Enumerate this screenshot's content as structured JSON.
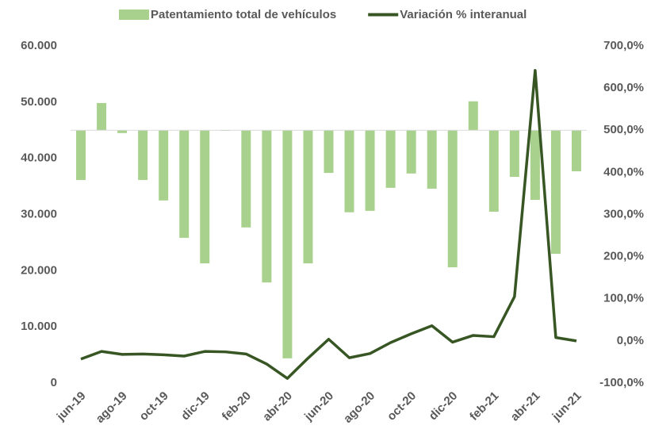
{
  "chart_data": {
    "type": "bar_line",
    "categories": [
      "jun-19",
      null,
      "ago-19",
      null,
      "oct-19",
      null,
      "dic-19",
      null,
      "feb-20",
      null,
      "abr-20",
      null,
      "jun-20",
      null,
      "ago-20",
      null,
      "oct-20",
      null,
      "dic-20",
      null,
      "feb-21",
      null,
      "abr-21",
      null,
      "jun-21"
    ],
    "series": [
      {
        "name": "Patentamiento total de vehículos",
        "color": "#a9d18e",
        "kind": "bar",
        "values": [
          36150,
          49850,
          44500,
          36150,
          32500,
          25850,
          21300,
          44900,
          27700,
          17900,
          4400,
          21300,
          37400,
          30400,
          30650,
          34750,
          37300,
          34600,
          20600,
          50150,
          30500,
          36700,
          32600,
          23000,
          37700
        ]
      },
      {
        "name": "Variación % interanual",
        "color": "#375623",
        "kind": "line",
        "axis": "y2",
        "values": [
          -43,
          -25,
          -32,
          -31,
          -33,
          -36,
          -25,
          -26,
          -31,
          -55,
          -89,
          -41,
          4,
          -40,
          -30,
          -4,
          17,
          36,
          -3,
          13,
          10,
          105,
          642,
          8,
          0
        ]
      }
    ],
    "bar_base": 45000,
    "ylim": [
      0,
      60000
    ],
    "yticks": [
      0,
      {
        "value": 10000,
        "label": "10.000"
      },
      {
        "value": 20000,
        "label": "20.000"
      },
      {
        "value": 30000,
        "label": "30.000"
      },
      {
        "value": 40000,
        "label": "40.000"
      },
      {
        "value": 50000,
        "label": "50.000"
      },
      {
        "value": 60000,
        "label": "60.000"
      }
    ],
    "y2lim": [
      -100,
      700
    ],
    "y2ticks": [
      {
        "value": -100,
        "label": "-100,0%"
      },
      {
        "value": 0,
        "label": "0,0%"
      },
      {
        "value": 100,
        "label": "100,0%"
      },
      {
        "value": 200,
        "label": "200,0%"
      },
      {
        "value": 300,
        "label": "300,0%"
      },
      {
        "value": 400,
        "label": "400,0%"
      },
      {
        "value": 500,
        "label": "500,0%"
      },
      {
        "value": 600,
        "label": "600,0%"
      },
      {
        "value": 700,
        "label": "700,0%"
      }
    ],
    "legend": "top"
  }
}
